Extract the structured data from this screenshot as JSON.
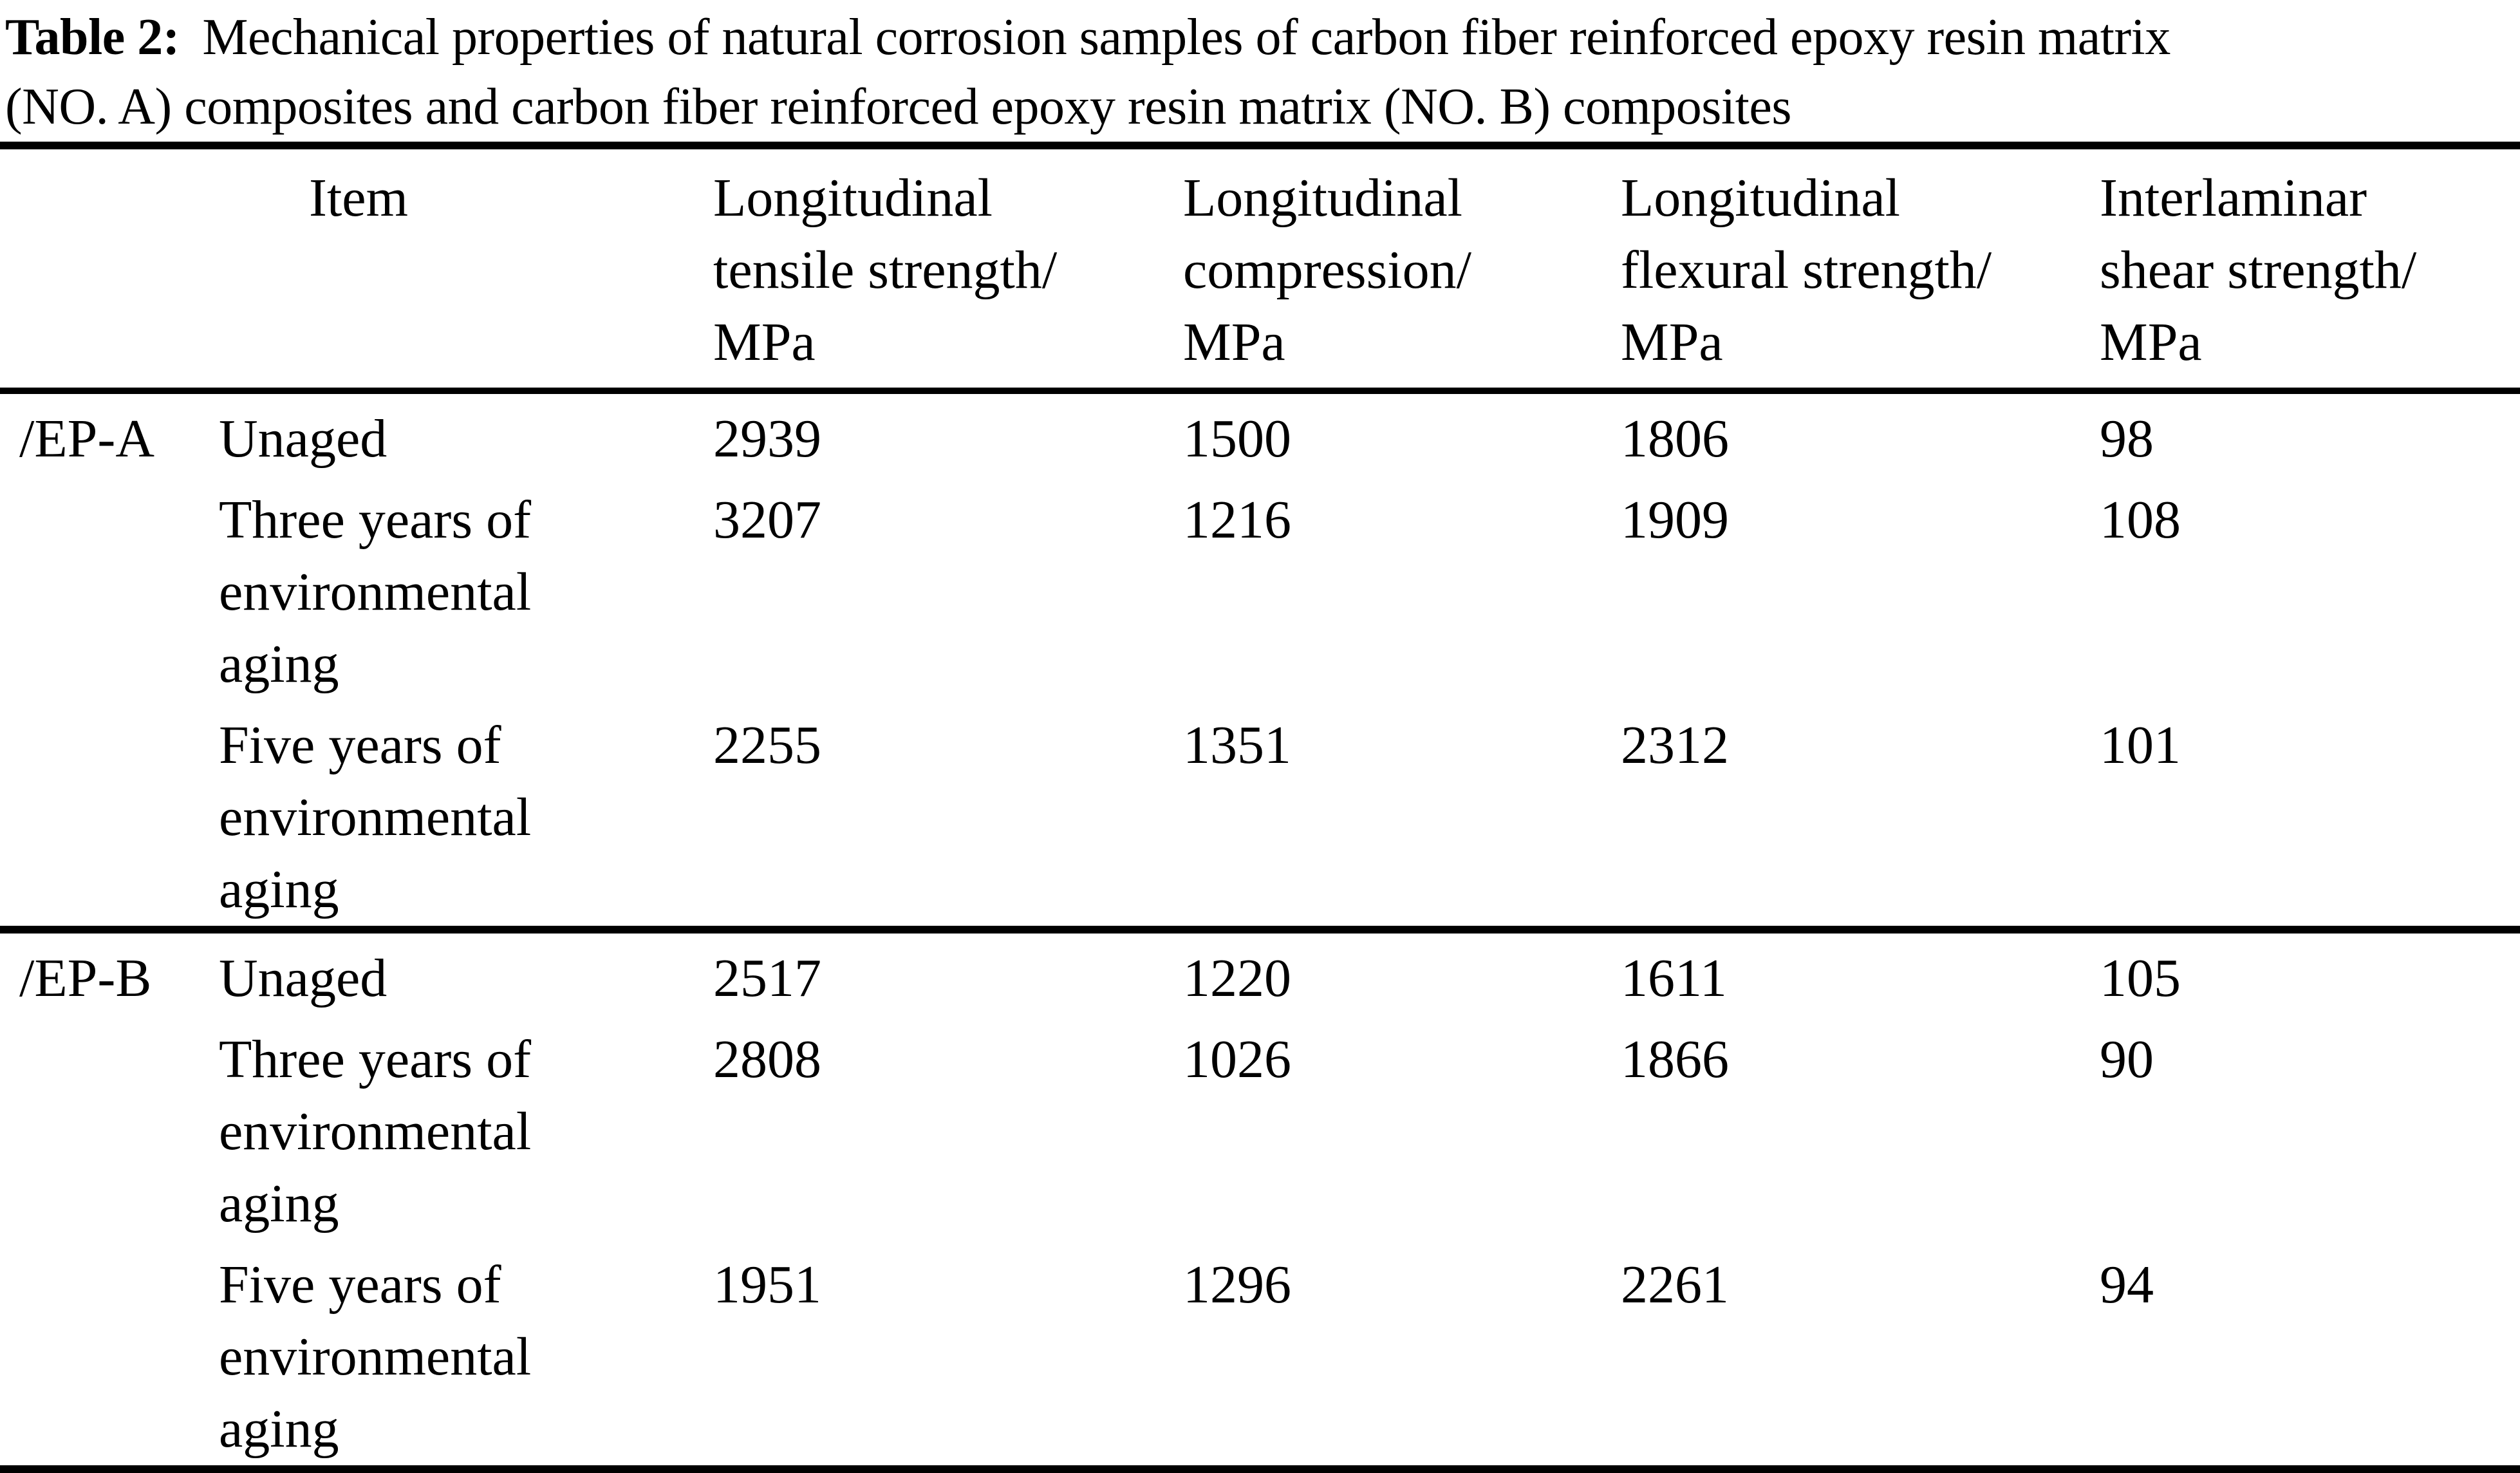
{
  "caption": {
    "label": "Table 2:",
    "line1_rest": " Mechanical properties of natural corrosion samples of carbon fiber reinforced epoxy resin matrix",
    "line2": "(NO. A) composites and carbon fiber reinforced epoxy resin matrix (NO. B) composites"
  },
  "table": {
    "headers": {
      "group": "",
      "item": "Item",
      "tensile": "Longitudinal\ntensile strength/\nMPa",
      "compression": "Longitudinal\ncompression/\nMPa",
      "flexural": "Longitudinal\nflexural strength/\nMPa",
      "shear": "Interlaminar\nshear strength/\nMPa"
    },
    "sections": [
      {
        "group": "/EP-A",
        "rows": [
          {
            "item": "Unaged",
            "values": [
              "2939",
              "1500",
              "1806",
              "98"
            ]
          },
          {
            "item": "Three years of\nenvironmental\naging",
            "values": [
              "3207",
              "1216",
              "1909",
              "108"
            ]
          },
          {
            "item": "Five years of\nenvironmental\naging",
            "values": [
              "2255",
              "1351",
              "2312",
              "101"
            ]
          }
        ]
      },
      {
        "group": "/EP-B",
        "rows": [
          {
            "item": "Unaged",
            "values": [
              "2517",
              "1220",
              "1611",
              "105"
            ]
          },
          {
            "item": "Three years of\nenvironmental\naging",
            "values": [
              "2808",
              "1026",
              "1866",
              "90"
            ]
          },
          {
            "item": "Five years of\nenvironmental\naging",
            "values": [
              "1951",
              "1296",
              "2261",
              "94"
            ]
          }
        ]
      }
    ]
  },
  "chart_data": {
    "type": "table",
    "title": "Table 2: Mechanical properties of natural corrosion samples of carbon fiber reinforced epoxy resin matrix (NO. A) composites and carbon fiber reinforced epoxy resin matrix (NO. B) composites",
    "columns": [
      "Group",
      "Item",
      "Longitudinal tensile strength/MPa",
      "Longitudinal compression/MPa",
      "Longitudinal flexural strength/MPa",
      "Interlaminar shear strength/MPa"
    ],
    "rows": [
      [
        "/EP-A",
        "Unaged",
        2939,
        1500,
        1806,
        98
      ],
      [
        "/EP-A",
        "Three years of environmental aging",
        3207,
        1216,
        1909,
        108
      ],
      [
        "/EP-A",
        "Five years of environmental aging",
        2255,
        1351,
        2312,
        101
      ],
      [
        "/EP-B",
        "Unaged",
        2517,
        1220,
        1611,
        105
      ],
      [
        "/EP-B",
        "Three years of environmental aging",
        2808,
        1026,
        1866,
        90
      ],
      [
        "/EP-B",
        "Five years of environmental aging",
        1951,
        1296,
        2261,
        94
      ]
    ]
  }
}
